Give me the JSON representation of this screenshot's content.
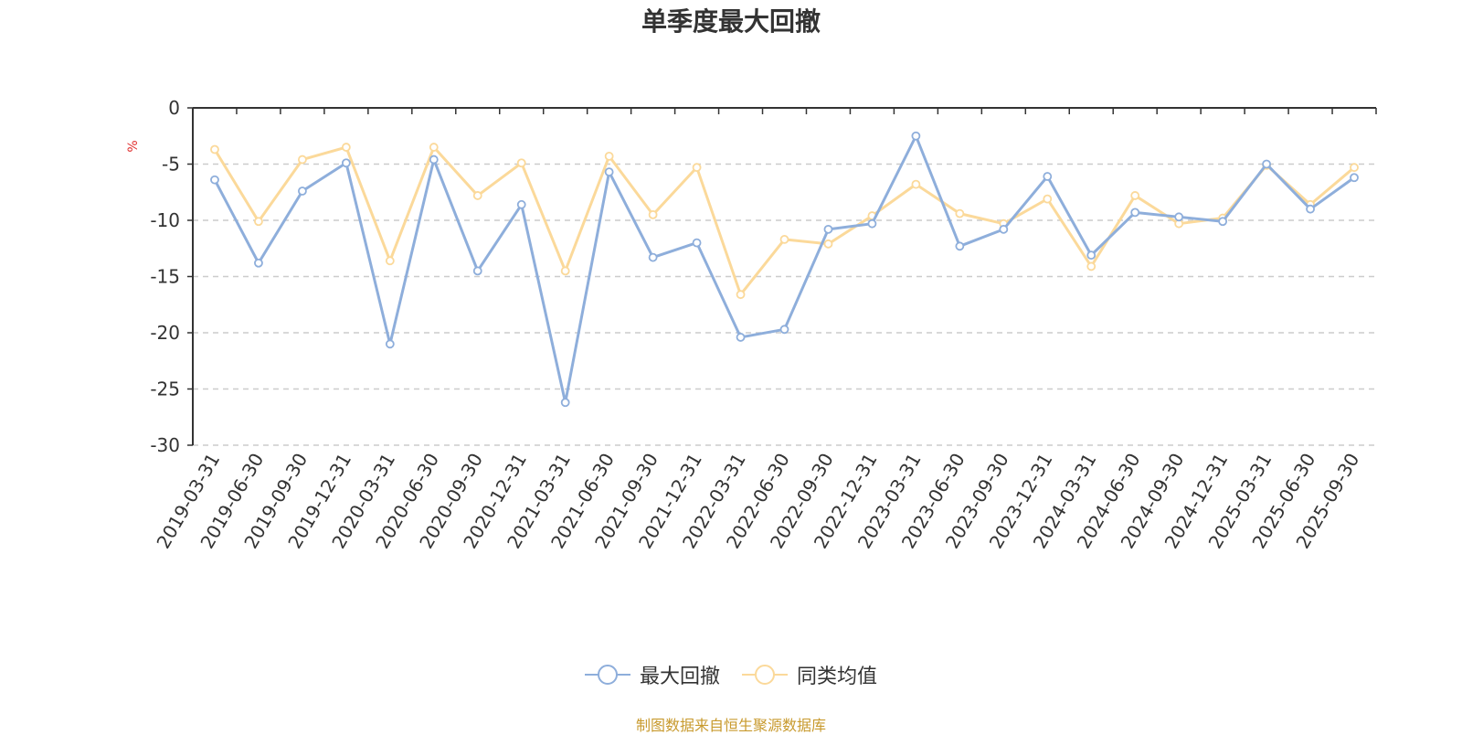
{
  "chart_data": {
    "type": "line",
    "title": "单季度最大回撤",
    "ylabel": "%",
    "ylim": [
      -30,
      0
    ],
    "yticks": [
      0,
      -5,
      -10,
      -15,
      -20,
      -25,
      -30
    ],
    "grid": true,
    "legend_position": "bottom",
    "categories": [
      "2019-03-31",
      "2019-06-30",
      "2019-09-30",
      "2019-12-31",
      "2020-03-31",
      "2020-06-30",
      "2020-09-30",
      "2020-12-31",
      "2021-03-31",
      "2021-06-30",
      "2021-09-30",
      "2021-12-31",
      "2022-03-31",
      "2022-06-30",
      "2022-09-30",
      "2022-12-31",
      "2023-03-31",
      "2023-06-30",
      "2023-09-30",
      "2023-12-31",
      "2024-03-31",
      "2024-06-30",
      "2024-09-30",
      "2024-12-31",
      "2025-03-31",
      "2025-06-30",
      "2025-09-30"
    ],
    "series": [
      {
        "name": "最大回撤",
        "color": "#8eaedb",
        "values": [
          -6.4,
          -13.8,
          -7.4,
          -4.9,
          -21.0,
          -4.6,
          -14.5,
          -8.6,
          -26.2,
          -5.7,
          -13.3,
          -12.0,
          -20.4,
          -19.7,
          -10.8,
          -10.3,
          -2.5,
          -12.3,
          -10.8,
          -6.1,
          -13.1,
          -9.3,
          -9.7,
          -10.1,
          -5.0,
          -9.0,
          -6.2
        ]
      },
      {
        "name": "同类均值",
        "color": "#fbd99a",
        "values": [
          -3.7,
          -10.1,
          -4.6,
          -3.5,
          -13.6,
          -3.5,
          -7.8,
          -4.9,
          -14.5,
          -4.3,
          -9.5,
          -5.3,
          -16.6,
          -11.7,
          -12.1,
          -9.6,
          -6.8,
          -9.4,
          -10.3,
          -8.1,
          -14.1,
          -7.8,
          -10.3,
          -9.8,
          -5.1,
          -8.6,
          -5.3
        ]
      }
    ]
  },
  "source_text": "制图数据来自恒生聚源数据库"
}
